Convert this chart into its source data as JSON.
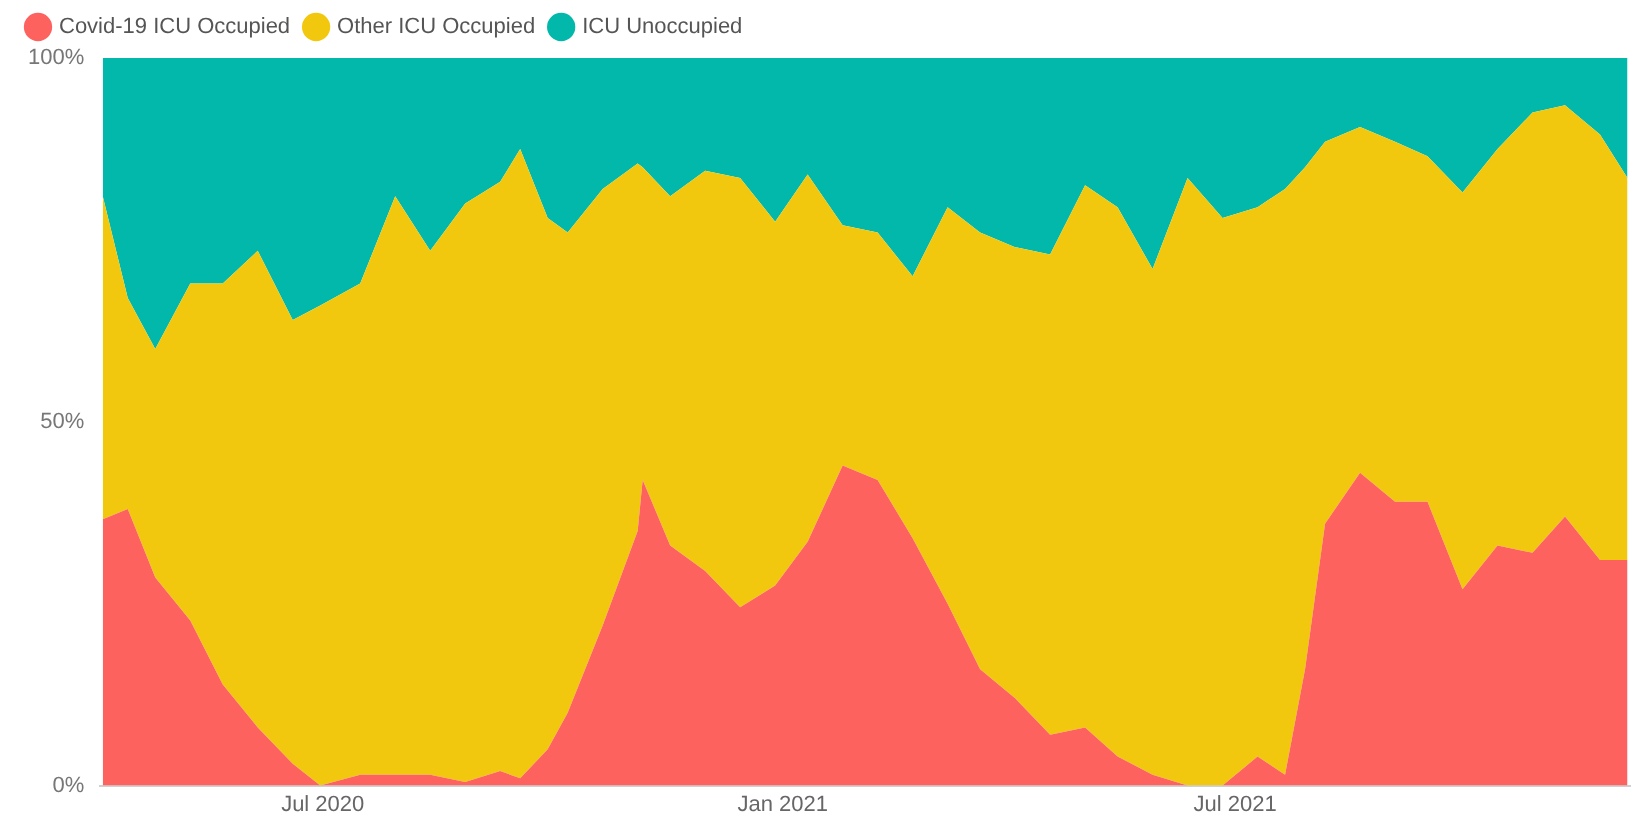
{
  "chart_data": {
    "type": "area",
    "stacked": true,
    "legend": "top left",
    "x": [
      "2020-04-04",
      "2020-04-14",
      "2020-04-25",
      "2020-05-09",
      "2020-05-22",
      "2020-06-05",
      "2020-06-19",
      "2020-06-30",
      "2020-07-16",
      "2020-07-30",
      "2020-08-13",
      "2020-08-27",
      "2020-09-10",
      "2020-09-18",
      "2020-09-29",
      "2020-10-07",
      "2020-10-21",
      "2020-11-04",
      "2020-11-06",
      "2020-11-17",
      "2020-12-01",
      "2020-12-15",
      "2020-12-29",
      "2021-01-11",
      "2021-01-25",
      "2021-02-08",
      "2021-02-22",
      "2021-03-08",
      "2021-03-21",
      "2021-04-04",
      "2021-04-18",
      "2021-05-02",
      "2021-05-15",
      "2021-05-29",
      "2021-06-12",
      "2021-06-26",
      "2021-07-10",
      "2021-07-21",
      "2021-07-29",
      "2021-08-06",
      "2021-08-20",
      "2021-09-03",
      "2021-09-16",
      "2021-09-30",
      "2021-10-14",
      "2021-10-28",
      "2021-11-10",
      "2021-11-24",
      "2021-12-05"
    ],
    "series": [
      {
        "name": "Covid-19 ICU Occupied",
        "color": "#fd625e",
        "values": [
          36.6,
          38,
          28.6,
          22.7,
          13.9,
          8,
          3,
          0,
          1.5,
          1.5,
          1.5,
          0.5,
          2,
          1,
          5,
          10,
          22,
          35,
          42,
          33,
          29.5,
          24.5,
          27.5,
          33.5,
          44,
          42,
          34,
          25,
          16,
          12,
          7,
          8,
          4,
          1.5,
          0,
          0,
          4,
          1.5,
          16,
          36,
          43,
          39,
          39,
          27,
          33,
          32,
          37,
          31,
          31
        ]
      },
      {
        "name": "Other ICU Occupied",
        "color": "#f2c80f",
        "values": [
          44.4,
          29,
          31.4,
          46.3,
          55.1,
          65.5,
          61,
          66,
          67.5,
          79.5,
          72,
          79.5,
          81,
          86.5,
          73,
          66,
          60,
          50.5,
          43,
          48,
          55,
          59,
          50,
          50.5,
          33,
          34,
          36,
          54.5,
          60,
          62,
          66,
          74.5,
          75.5,
          69.5,
          83.5,
          78,
          75.5,
          80.5,
          69,
          52.5,
          47.5,
          49.5,
          47.5,
          54.5,
          54.5,
          60.5,
          56.5,
          58.5,
          52.5
        ]
      },
      {
        "name": "ICU Unoccupied",
        "color": "#01b8aa",
        "values": [
          19,
          33,
          40,
          31,
          31,
          26.5,
          36,
          34,
          31,
          19,
          26.5,
          20,
          17,
          12.5,
          22,
          24,
          18,
          14.5,
          15,
          19,
          15.5,
          16.5,
          22.5,
          16,
          23,
          24,
          30,
          20.5,
          24,
          26,
          27,
          17.5,
          20.5,
          29,
          16.5,
          22,
          20.5,
          18,
          15,
          11.5,
          9.5,
          11.5,
          13.5,
          18.5,
          12.5,
          7.5,
          6.5,
          10.5,
          16.5
        ]
      }
    ],
    "xticks": [
      {
        "value": "2020-07-01",
        "label": "Jul 2020"
      },
      {
        "value": "2021-01-01",
        "label": "Jan 2021"
      },
      {
        "value": "2021-07-01",
        "label": "Jul 2021"
      }
    ],
    "xlim": [
      "2020-04-03",
      "2021-12-06"
    ],
    "ylim": [
      0,
      100
    ],
    "yticks": [
      {
        "value": 0,
        "label": "0%"
      },
      {
        "value": 50,
        "label": "50%"
      },
      {
        "value": 100,
        "label": "100%"
      }
    ]
  }
}
